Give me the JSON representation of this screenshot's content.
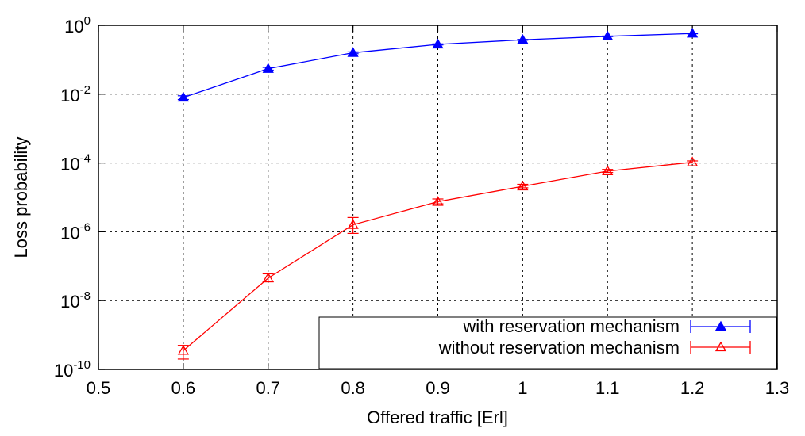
{
  "chart_data": {
    "type": "line",
    "xlabel": "Offered traffic [Erl]",
    "ylabel": "Loss probability",
    "xlim": [
      0.5,
      1.3
    ],
    "ylim": [
      1e-10,
      1
    ],
    "yscale": "log",
    "grid": true,
    "legend_position": "bottom-right",
    "x_ticks": [
      "0.5",
      "0.6",
      "0.7",
      "0.8",
      "0.9",
      "1",
      "1.1",
      "1.2",
      "1.3"
    ],
    "y_ticks": [
      {
        "base": "10",
        "exp": "0"
      },
      {
        "base": "10",
        "exp": "-2"
      },
      {
        "base": "10",
        "exp": "-4"
      },
      {
        "base": "10",
        "exp": "-6"
      },
      {
        "base": "10",
        "exp": "-8"
      },
      {
        "base": "10",
        "exp": "-10"
      }
    ],
    "series": [
      {
        "name": "with reservation mechanism",
        "color": "#0000ff",
        "marker": "filled-triangle",
        "x": [
          0.6,
          0.7,
          0.8,
          0.9,
          1.0,
          1.1,
          1.2
        ],
        "y": [
          0.008,
          0.055,
          0.16,
          0.28,
          0.38,
          0.48,
          0.58
        ],
        "y_low": [
          0.007,
          0.05,
          0.15,
          0.27,
          0.37,
          0.47,
          0.57
        ],
        "y_high": [
          0.009,
          0.06,
          0.17,
          0.29,
          0.39,
          0.49,
          0.59
        ]
      },
      {
        "name": "without reservation mechanism",
        "color": "#ff0000",
        "marker": "open-triangle",
        "x": [
          0.6,
          0.7,
          0.8,
          0.9,
          1.0,
          1.1,
          1.2
        ],
        "y": [
          3.5e-10,
          4.5e-08,
          1.6e-06,
          7.5e-06,
          2.1e-05,
          5.8e-05,
          0.000105
        ],
        "y_low": [
          2e-10,
          3.5e-08,
          9e-07,
          6.5e-06,
          1.9e-05,
          5.3e-05,
          0.0001
        ],
        "y_high": [
          5e-10,
          6e-08,
          2.6e-06,
          9e-06,
          2.4e-05,
          6.5e-05,
          0.000115
        ]
      }
    ]
  }
}
